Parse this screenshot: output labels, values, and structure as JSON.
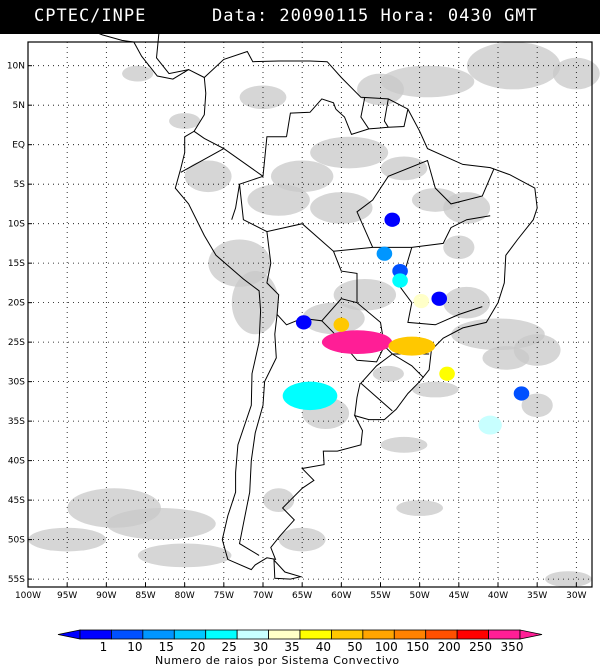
{
  "header": {
    "source": "CPTEC/INPE",
    "datetime": "Data: 20090115 Hora: 0430 GMT"
  },
  "map": {
    "lat_labels": [
      "10N",
      "5N",
      "EQ",
      "5S",
      "10S",
      "15S",
      "20S",
      "25S",
      "30S",
      "35S",
      "40S",
      "45S",
      "50S",
      "55S"
    ],
    "lon_labels": [
      "100W",
      "95W",
      "90W",
      "85W",
      "80W",
      "75W",
      "70W",
      "65W",
      "60W",
      "55W",
      "50W",
      "45W",
      "40W",
      "35W",
      "30W"
    ],
    "extent": {
      "lon": [
        -100,
        -28
      ],
      "lat": [
        -56,
        13
      ]
    },
    "grid": "dotted",
    "land_outline_color": "#000000",
    "cloud_color": "#c8c8c8"
  },
  "legend": {
    "ticks": [
      "1",
      "10",
      "15",
      "20",
      "25",
      "30",
      "35",
      "40",
      "50",
      "100",
      "150",
      "200",
      "250",
      "350"
    ],
    "colors": [
      "#0000ff",
      "#0050ff",
      "#0096ff",
      "#00c8ff",
      "#00ffff",
      "#c8ffff",
      "#ffffc8",
      "#ffff00",
      "#ffc800",
      "#ffa500",
      "#ff8200",
      "#ff5000",
      "#ff0000",
      "#ff1e96"
    ],
    "caption": "Numero de raios por Sistema Convectivo"
  },
  "storms": [
    {
      "name": "storm-mato-grosso",
      "lon": -53.5,
      "lat": -9.5,
      "level": 0
    },
    {
      "name": "storm-goias-1",
      "lon": -54.5,
      "lat": -13.8,
      "level": 2
    },
    {
      "name": "storm-goias-2",
      "lon": -52.5,
      "lat": -16.0,
      "level": 1
    },
    {
      "name": "storm-goias-3",
      "lon": -52.5,
      "lat": -17.2,
      "level": 4
    },
    {
      "name": "storm-minas",
      "lon": -47.5,
      "lat": -19.5,
      "level": 0
    },
    {
      "name": "storm-minas-2",
      "lon": -49.8,
      "lat": -19.8,
      "level": 6
    },
    {
      "name": "storm-paraguay-west",
      "lon": -64.8,
      "lat": -22.5,
      "level": 0
    },
    {
      "name": "storm-paraguay",
      "lon": -58.0,
      "lat": -25.0,
      "level": 13
    },
    {
      "name": "storm-parana",
      "lon": -51.0,
      "lat": -25.5,
      "level": 8
    },
    {
      "name": "storm-parana-small",
      "lon": -60.0,
      "lat": -22.8,
      "level": 8
    },
    {
      "name": "storm-santa-catarina",
      "lon": -46.5,
      "lat": -29.0,
      "level": 7
    },
    {
      "name": "storm-argentina",
      "lon": -64.0,
      "lat": -31.8,
      "level": 4
    },
    {
      "name": "storm-atlantic-1",
      "lon": -37.0,
      "lat": -31.5,
      "level": 1
    },
    {
      "name": "storm-atlantic-2",
      "lon": -41.0,
      "lat": -35.5,
      "level": 5
    }
  ]
}
